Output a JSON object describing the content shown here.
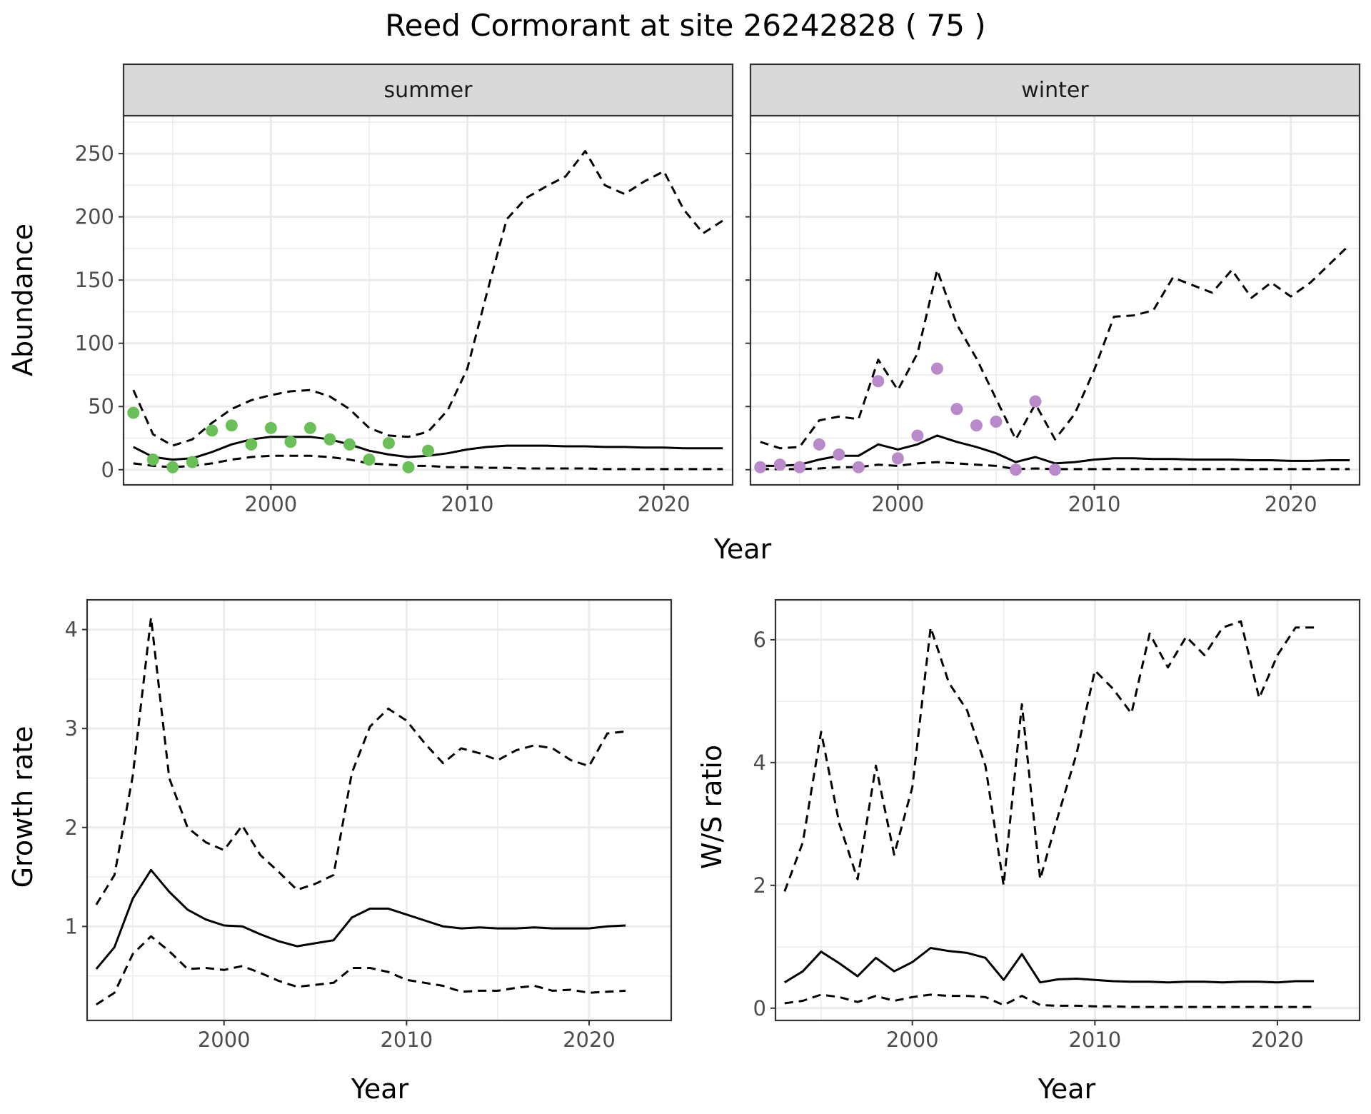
{
  "title": "Reed Cormorant at site 26242828 ( 75 )",
  "colors": {
    "summer_points": "#6abf59",
    "winter_points": "#b98ac9",
    "lines": "#000000",
    "strip": "#d9d9d9"
  },
  "abundance": {
    "ylabel": "Abundance",
    "xlabel": "Year",
    "xlim": [
      1992.5,
      2023.5
    ],
    "ylim": [
      -12,
      280
    ],
    "xticks": [
      2000,
      2010,
      2020
    ],
    "yticks": [
      0,
      50,
      100,
      150,
      200,
      250
    ],
    "facets": [
      "summer",
      "winter"
    ]
  },
  "growth": {
    "ylabel": "Growth rate",
    "xlabel": "Year",
    "xlim": [
      1992.5,
      2024.5
    ],
    "ylim": [
      0.05,
      4.3
    ],
    "xticks": [
      2000,
      2010,
      2020
    ],
    "yticks": [
      1,
      2,
      3,
      4
    ]
  },
  "ws": {
    "ylabel": "W/S ratio",
    "xlabel": "Year",
    "xlim": [
      1992.5,
      2024.5
    ],
    "ylim": [
      -0.2,
      6.65
    ],
    "xticks": [
      2000,
      2010,
      2020
    ],
    "yticks": [
      0,
      2,
      4,
      6
    ]
  },
  "chart_data": [
    {
      "type": "line",
      "facet": "summer",
      "title": "summer",
      "xlabel": "Year",
      "ylabel": "Abundance",
      "x": [
        1993,
        1994,
        1995,
        1996,
        1997,
        1998,
        1999,
        2000,
        2001,
        2002,
        2003,
        2004,
        2005,
        2006,
        2007,
        2008,
        2009,
        2010,
        2011,
        2012,
        2013,
        2014,
        2015,
        2016,
        2017,
        2018,
        2019,
        2020,
        2021,
        2022,
        2023
      ],
      "series": [
        {
          "style": "solid",
          "values": [
            18,
            10,
            8,
            9,
            14,
            20,
            24,
            26,
            26,
            26,
            24,
            20,
            15,
            12,
            10,
            11,
            13,
            16,
            18,
            19,
            19,
            19,
            18.5,
            18.5,
            18,
            18,
            17.5,
            17.5,
            17,
            17,
            17
          ]
        },
        {
          "style": "dashed",
          "values": [
            63,
            28,
            19,
            24,
            37,
            48,
            55,
            59,
            62,
            63,
            58,
            48,
            33,
            27,
            26,
            30,
            47,
            80,
            140,
            198,
            215,
            224,
            232,
            252,
            225,
            218,
            228,
            236,
            206,
            187,
            197
          ]
        },
        {
          "style": "dashed",
          "values": [
            5,
            3,
            2,
            3,
            5,
            8,
            10,
            11,
            11,
            11,
            10,
            8,
            5,
            4,
            3,
            3,
            2,
            2,
            1.5,
            1.5,
            1,
            1,
            1,
            1,
            0.5,
            0.5,
            0.5,
            0.5,
            0.5,
            0.5,
            0.5
          ]
        }
      ],
      "points": {
        "x": [
          1993,
          1994,
          1995,
          1996,
          1997,
          1998,
          1999,
          2000,
          2001,
          2002,
          2003,
          2004,
          2005,
          2006,
          2007,
          2008
        ],
        "y": [
          45,
          8,
          2,
          6,
          31,
          35,
          20,
          33,
          22,
          33,
          24,
          20,
          8,
          21,
          2,
          15
        ]
      },
      "ylim": [
        -12,
        280
      ]
    },
    {
      "type": "line",
      "facet": "winter",
      "title": "winter",
      "xlabel": "Year",
      "x": [
        1993,
        1994,
        1995,
        1996,
        1997,
        1998,
        1999,
        2000,
        2001,
        2002,
        2003,
        2004,
        2005,
        2006,
        2007,
        2008,
        2009,
        2010,
        2011,
        2012,
        2013,
        2014,
        2015,
        2016,
        2017,
        2018,
        2019,
        2020,
        2021,
        2022,
        2023
      ],
      "series": [
        {
          "style": "solid",
          "values": [
            3,
            3,
            4,
            8,
            11,
            11,
            20,
            16,
            20,
            27,
            22,
            18,
            13,
            6,
            10,
            5,
            6,
            8,
            9,
            9,
            8.5,
            8.5,
            8,
            8,
            8,
            7.5,
            7.5,
            7,
            7,
            7.5,
            7.5
          ]
        },
        {
          "style": "dashed",
          "values": [
            22,
            17,
            18,
            39,
            42,
            40,
            87,
            63,
            92,
            158,
            115,
            88,
            56,
            24,
            52,
            24,
            44,
            79,
            121,
            122,
            126,
            152,
            146,
            140,
            158,
            136,
            148,
            137,
            148,
            163,
            178
          ]
        },
        {
          "style": "dashed",
          "values": [
            0.5,
            0.5,
            0.5,
            1,
            2,
            2,
            4,
            3,
            5,
            6,
            5,
            4,
            3,
            0.5,
            1,
            0.5,
            0.5,
            0.5,
            0.5,
            0.5,
            0.5,
            0.5,
            0.5,
            0.5,
            0.5,
            0.5,
            0.5,
            0.5,
            0.5,
            0.5,
            0.5
          ]
        }
      ],
      "points": {
        "x": [
          1993,
          1994,
          1995,
          1996,
          1997,
          1998,
          1999,
          2000,
          2001,
          2002,
          2003,
          2004,
          2005,
          2006,
          2007,
          2008
        ],
        "y": [
          2,
          4,
          2,
          20,
          12,
          2,
          70,
          9,
          27,
          80,
          48,
          35,
          38,
          0,
          54,
          0
        ]
      },
      "ylim": [
        -12,
        280
      ]
    },
    {
      "type": "line",
      "xlabel": "Year",
      "ylabel": "Growth rate",
      "x": [
        1993,
        1994,
        1995,
        1996,
        1997,
        1998,
        1999,
        2000,
        2001,
        2002,
        2003,
        2004,
        2005,
        2006,
        2007,
        2008,
        2009,
        2010,
        2011,
        2012,
        2013,
        2014,
        2015,
        2016,
        2017,
        2018,
        2019,
        2020,
        2021,
        2022
      ],
      "series": [
        {
          "style": "solid",
          "values": [
            0.57,
            0.79,
            1.28,
            1.57,
            1.35,
            1.17,
            1.07,
            1.01,
            1.0,
            0.92,
            0.85,
            0.8,
            0.83,
            0.86,
            1.09,
            1.18,
            1.18,
            1.12,
            1.06,
            1.0,
            0.98,
            0.99,
            0.98,
            0.98,
            0.99,
            0.98,
            0.98,
            0.98,
            1.0,
            1.01
          ]
        },
        {
          "style": "dashed",
          "values": [
            1.22,
            1.52,
            2.52,
            4.12,
            2.5,
            2.0,
            1.85,
            1.77,
            2.02,
            1.72,
            1.55,
            1.37,
            1.43,
            1.52,
            2.55,
            3.02,
            3.2,
            3.08,
            2.85,
            2.65,
            2.8,
            2.75,
            2.68,
            2.78,
            2.83,
            2.8,
            2.68,
            2.62,
            2.95,
            2.97
          ]
        },
        {
          "style": "dashed",
          "values": [
            0.21,
            0.33,
            0.72,
            0.9,
            0.75,
            0.57,
            0.58,
            0.56,
            0.6,
            0.53,
            0.45,
            0.39,
            0.41,
            0.43,
            0.58,
            0.58,
            0.54,
            0.46,
            0.43,
            0.4,
            0.34,
            0.35,
            0.35,
            0.38,
            0.4,
            0.35,
            0.36,
            0.33,
            0.34,
            0.35
          ]
        }
      ],
      "ylim": [
        0.05,
        4.3
      ]
    },
    {
      "type": "line",
      "xlabel": "Year",
      "ylabel": "W/S ratio",
      "x": [
        1993,
        1994,
        1995,
        1996,
        1997,
        1998,
        1999,
        2000,
        2001,
        2002,
        2003,
        2004,
        2005,
        2006,
        2007,
        2008,
        2009,
        2010,
        2011,
        2012,
        2013,
        2014,
        2015,
        2016,
        2017,
        2018,
        2019,
        2020,
        2021,
        2022
      ],
      "series": [
        {
          "style": "solid",
          "values": [
            0.42,
            0.6,
            0.92,
            0.73,
            0.52,
            0.82,
            0.6,
            0.75,
            0.98,
            0.93,
            0.9,
            0.82,
            0.46,
            0.88,
            0.42,
            0.47,
            0.48,
            0.46,
            0.44,
            0.43,
            0.43,
            0.42,
            0.43,
            0.43,
            0.42,
            0.43,
            0.43,
            0.42,
            0.44,
            0.44
          ]
        },
        {
          "style": "dashed",
          "values": [
            1.9,
            2.7,
            4.5,
            3.0,
            2.1,
            3.95,
            2.5,
            3.6,
            6.2,
            5.3,
            4.85,
            3.95,
            2.0,
            4.95,
            2.1,
            3.15,
            4.15,
            5.5,
            5.2,
            4.8,
            6.1,
            5.55,
            6.05,
            5.75,
            6.2,
            6.3,
            5.05,
            5.75,
            6.2,
            6.2
          ]
        },
        {
          "style": "dashed",
          "values": [
            0.08,
            0.12,
            0.22,
            0.18,
            0.1,
            0.2,
            0.12,
            0.18,
            0.22,
            0.2,
            0.2,
            0.18,
            0.05,
            0.2,
            0.05,
            0.04,
            0.04,
            0.03,
            0.03,
            0.02,
            0.02,
            0.02,
            0.02,
            0.02,
            0.02,
            0.02,
            0.02,
            0.02,
            0.02,
            0.02
          ]
        }
      ],
      "ylim": [
        -0.2,
        6.65
      ]
    }
  ]
}
